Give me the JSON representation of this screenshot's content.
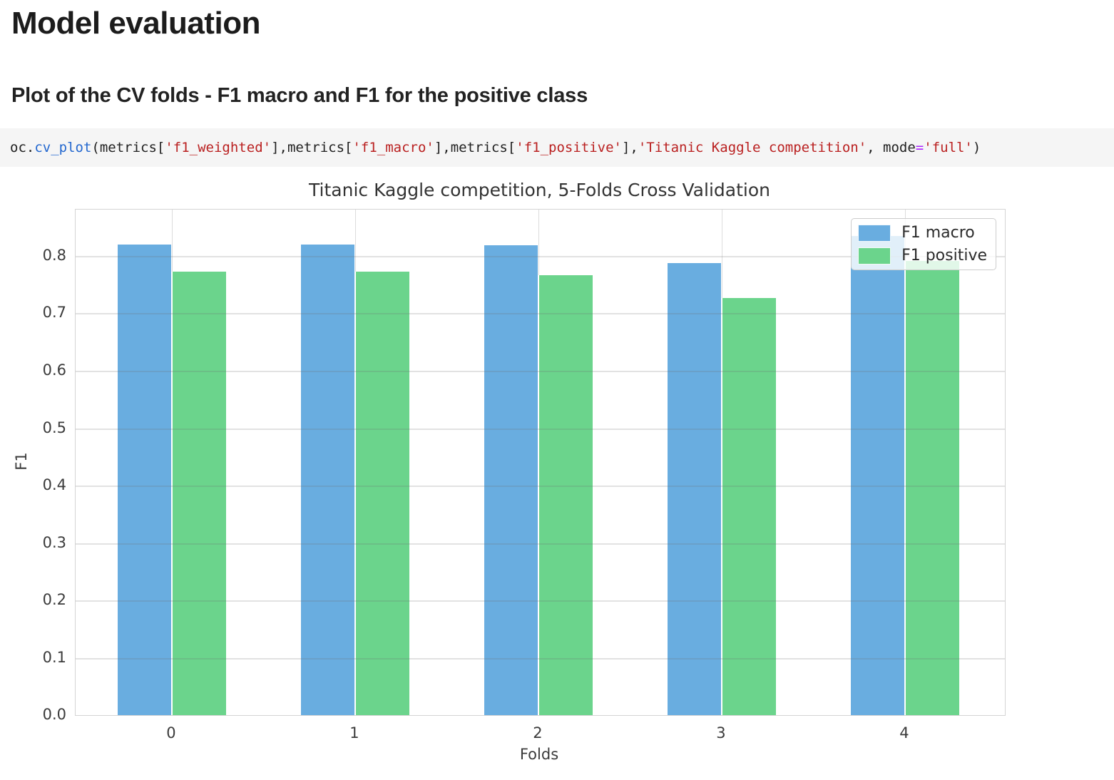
{
  "page": {
    "title": "Model evaluation",
    "subtitle": "Plot of the CV folds - F1 macro and F1 for the positive class"
  },
  "code": {
    "tokens": [
      {
        "text": "oc.",
        "type": "plain"
      },
      {
        "text": "cv_plot",
        "type": "function"
      },
      {
        "text": "(metrics[",
        "type": "plain"
      },
      {
        "text": "'f1_weighted'",
        "type": "string"
      },
      {
        "text": "],metrics[",
        "type": "plain"
      },
      {
        "text": "'f1_macro'",
        "type": "string"
      },
      {
        "text": "],metrics[",
        "type": "plain"
      },
      {
        "text": "'f1_positive'",
        "type": "string"
      },
      {
        "text": "],",
        "type": "plain"
      },
      {
        "text": "'Titanic Kaggle competition'",
        "type": "string"
      },
      {
        "text": ", mode",
        "type": "plain"
      },
      {
        "text": "=",
        "type": "operator"
      },
      {
        "text": "'full'",
        "type": "string"
      },
      {
        "text": ")",
        "type": "plain"
      }
    ],
    "token_colors": {
      "plain": "#212121",
      "function": "#2468cf",
      "string": "#ba2121",
      "operator": "#aa22ff"
    }
  },
  "chart_data": {
    "type": "bar",
    "title": "Titanic Kaggle competition, 5-Folds Cross Validation",
    "xlabel": "Folds",
    "ylabel": "F1",
    "categories": [
      "0",
      "1",
      "2",
      "3",
      "4"
    ],
    "series": [
      {
        "name": "F1 macro",
        "color": "#69ade0",
        "values": [
          0.82,
          0.82,
          0.818,
          0.788,
          0.835
        ]
      },
      {
        "name": "F1 positive",
        "color": "#6bd48c",
        "values": [
          0.773,
          0.773,
          0.766,
          0.726,
          0.791
        ]
      }
    ],
    "yticks": [
      0.0,
      0.1,
      0.2,
      0.3,
      0.4,
      0.5,
      0.6,
      0.7,
      0.8
    ],
    "ylim": [
      0,
      0.88
    ],
    "xlim": [
      -0.525,
      4.545
    ],
    "bar_width": 0.3,
    "grid": true,
    "legend_position": "upper right"
  }
}
